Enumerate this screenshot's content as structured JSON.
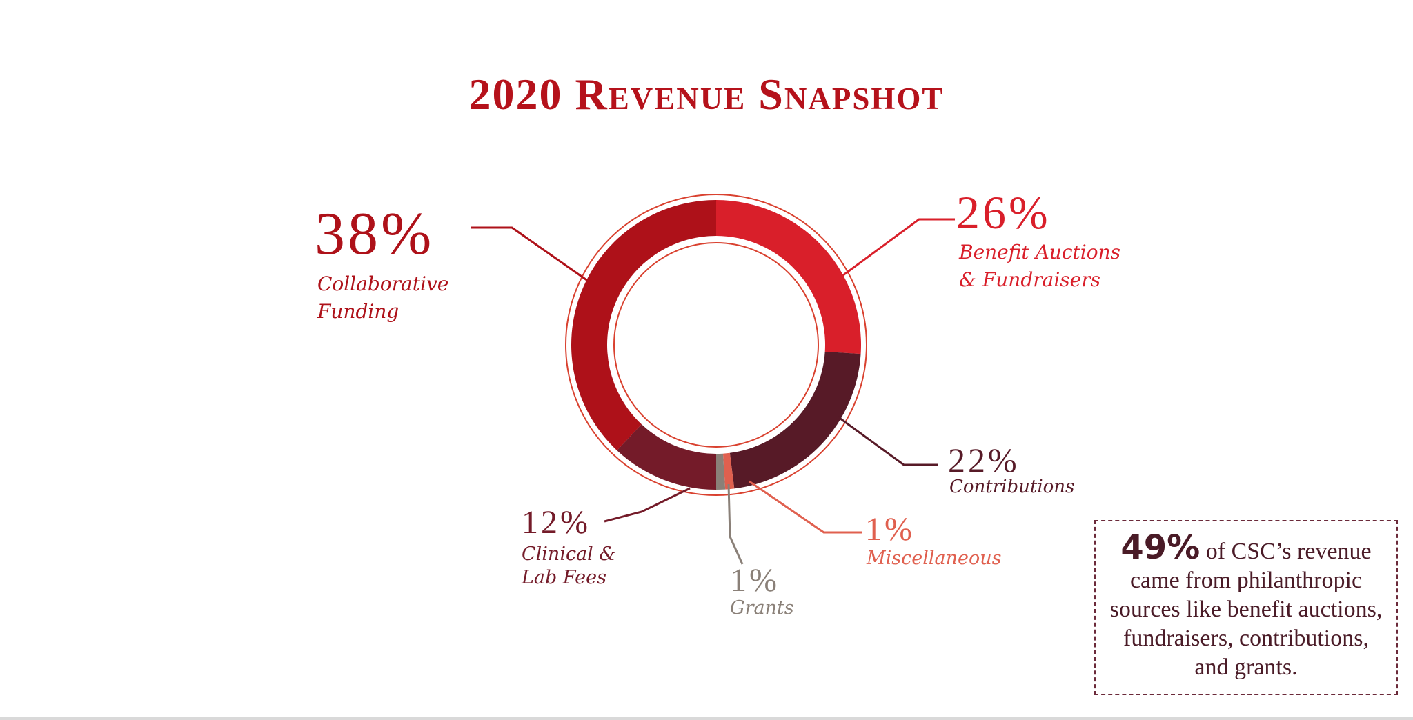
{
  "chart_data": {
    "type": "pie",
    "title": "2020 Revenue Snapshot",
    "slices": [
      {
        "key": "benefit",
        "name": "Benefit Auctions & Fundraisers",
        "pct_label": "26%",
        "value": 26,
        "color": "#d91f2a"
      },
      {
        "key": "contrib",
        "name": "Contributions",
        "pct_label": "22%",
        "value": 22,
        "color": "#571a27"
      },
      {
        "key": "misc",
        "name": "Miscellaneous",
        "pct_label": "1%",
        "value": 1,
        "color": "#e0604f"
      },
      {
        "key": "grants",
        "name": "Grants",
        "pct_label": "1%",
        "value": 1,
        "color": "#8a8078"
      },
      {
        "key": "clinical",
        "name": "Clinical & Lab Fees",
        "pct_label": "12%",
        "value": 12,
        "color": "#741b29"
      },
      {
        "key": "collab",
        "name": "Collaborative Funding",
        "pct_label": "38%",
        "value": 38,
        "color": "#ae1119"
      }
    ],
    "labels": {
      "collab_pct": "38%",
      "collab_name_1": "Collaborative",
      "collab_name_2": "Funding",
      "benefit_pct": "26%",
      "benefit_name_1": "Benefit Auctions",
      "benefit_name_2": "& Fundraisers",
      "contrib_pct": "22%",
      "contrib_name": "Contributions",
      "misc_pct": "1%",
      "misc_name": "Miscellaneous",
      "grants_pct": "1%",
      "grants_name": "Grants",
      "clinical_pct": "12%",
      "clinical_name_1": "Clinical &",
      "clinical_name_2": "Lab Fees"
    }
  },
  "callout": {
    "highlight": "49%",
    "text": "of CSC’s revenue came from philanthropic sources like benefit auctions, fundraisers, contributions, and grants."
  },
  "colors": {
    "title": "#b5121b",
    "ring_outline": "#d9412f",
    "collab": "#ae1119",
    "benefit": "#d91f2a",
    "contrib": "#571a27",
    "misc": "#e0604f",
    "grants": "#8a8078",
    "clinical": "#741b29"
  }
}
